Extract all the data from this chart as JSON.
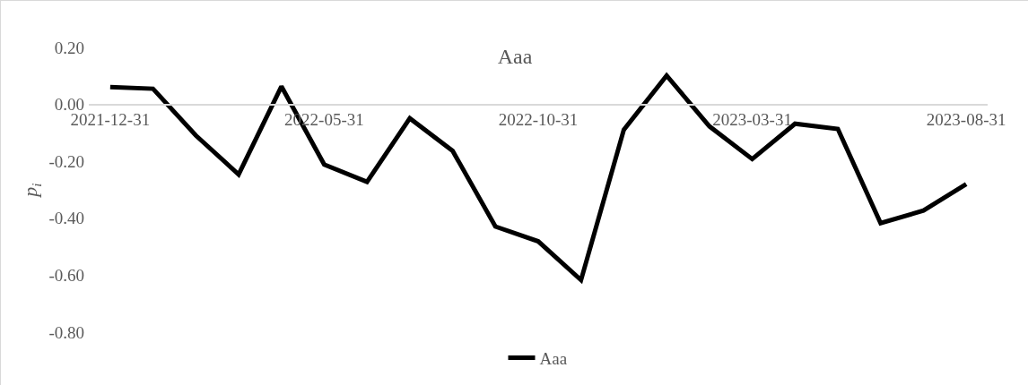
{
  "chart_data": {
    "type": "line",
    "title": "Aaa",
    "ylabel": "p$_{i}$",
    "categories": [
      "2021-12-31",
      null,
      null,
      null,
      null,
      "2022-05-31",
      null,
      null,
      null,
      null,
      "2022-10-31",
      null,
      null,
      null,
      null,
      "2023-03-31",
      null,
      null,
      null,
      null,
      "2023-08-31"
    ],
    "series": [
      {
        "name": "Aaa",
        "color": "#000000",
        "values": [
          0.061,
          0.055,
          -0.109,
          -0.246,
          0.063,
          -0.211,
          -0.272,
          -0.049,
          -0.163,
          -0.429,
          -0.481,
          -0.617,
          -0.089,
          0.101,
          -0.077,
          -0.192,
          -0.068,
          -0.086,
          -0.417,
          -0.373,
          -0.28
        ]
      }
    ],
    "ylim": [
      -0.8,
      0.2
    ],
    "yticks": [
      {
        "value": 0.2,
        "label": "0.20"
      },
      {
        "value": 0,
        "label": "0.00"
      },
      {
        "value": -0.2,
        "label": "-0.20"
      },
      {
        "value": -0.4,
        "label": "-0.40"
      },
      {
        "value": -0.6,
        "label": "-0.60"
      },
      {
        "value": -0.8,
        "label": "-0.80"
      }
    ],
    "grid": false,
    "legend": "bottom",
    "marker": "none",
    "line_style": "solid"
  }
}
